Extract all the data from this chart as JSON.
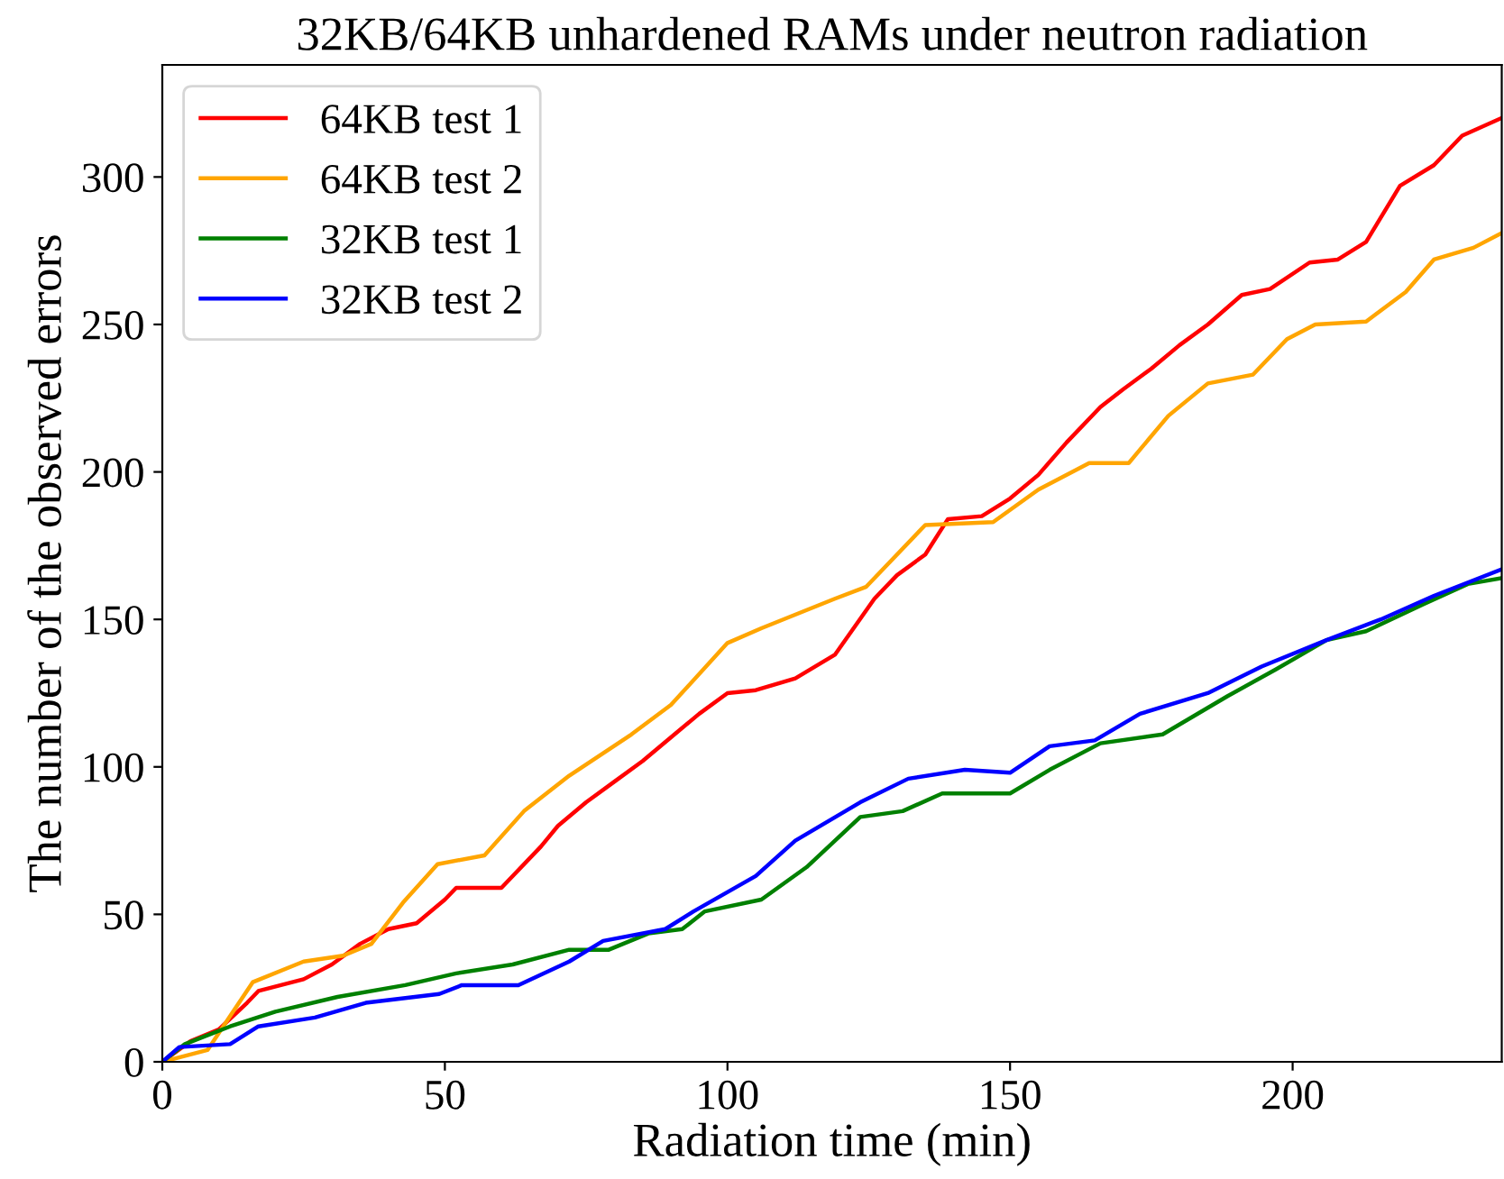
{
  "chart_data": {
    "type": "line",
    "title": "32KB/64KB unhardened RAMs under neutron radiation",
    "xlabel": "Radiation time (min)",
    "ylabel": "The number of the observed errors",
    "xlim": [
      0,
      237
    ],
    "ylim": [
      0,
      338
    ],
    "xticks": [
      0,
      50,
      100,
      150,
      200
    ],
    "yticks": [
      0,
      50,
      100,
      150,
      200,
      250,
      300
    ],
    "grid": false,
    "legend": "top left",
    "marker": "none",
    "line_style": "solid",
    "series": [
      {
        "name": "64KB test 1",
        "color": "#ff0000",
        "x": [
          0,
          5,
          10,
          15,
          17,
          25,
          30,
          35,
          40,
          45,
          50,
          52,
          60,
          67,
          70,
          75,
          80,
          85,
          90,
          95,
          100,
          105,
          112,
          119,
          126,
          130,
          135,
          139,
          145,
          150,
          155,
          160,
          166,
          170,
          175,
          180,
          185,
          191,
          196,
          203,
          208,
          213,
          219,
          225,
          230,
          237
        ],
        "values": [
          0,
          7,
          11,
          20,
          24,
          28,
          33,
          40,
          45,
          47,
          55,
          59,
          59,
          73,
          80,
          88,
          95,
          102,
          110,
          118,
          125,
          126,
          130,
          138,
          157,
          165,
          172,
          184,
          185,
          191,
          199,
          210,
          222,
          228,
          235,
          243,
          250,
          260,
          262,
          271,
          272,
          278,
          297,
          304,
          314,
          320
        ]
      },
      {
        "name": "64KB test 2",
        "color": "#ffa500",
        "x": [
          0,
          8,
          16,
          25,
          32,
          37,
          42.6,
          48.7,
          57,
          64,
          72,
          83,
          90,
          100,
          106,
          119,
          124.5,
          135,
          147,
          155,
          164,
          171,
          178,
          185,
          193,
          199,
          204,
          213,
          220,
          225,
          232,
          237
        ],
        "values": [
          0,
          4,
          27,
          34,
          36,
          40,
          54,
          67,
          70,
          85,
          97,
          111,
          121,
          142,
          147,
          157,
          161,
          182,
          183,
          194,
          203,
          203,
          219,
          230,
          233,
          245,
          250,
          251,
          261,
          272,
          276,
          281
        ]
      },
      {
        "name": "32KB test 1",
        "color": "#008000",
        "x": [
          0,
          4,
          12,
          20,
          31,
          43,
          52,
          62,
          72,
          79,
          86,
          92,
          96,
          106,
          114,
          123.5,
          131,
          138,
          150,
          157,
          166,
          177,
          188.5,
          197,
          206,
          213,
          223,
          231,
          237
        ],
        "values": [
          0,
          6,
          12,
          17,
          22,
          26,
          30,
          33,
          38,
          38,
          43.5,
          45,
          51,
          55,
          66,
          83,
          85,
          91,
          91,
          99,
          108,
          111,
          124,
          133,
          143,
          146,
          155,
          162,
          164
        ]
      },
      {
        "name": "32KB test 2",
        "color": "#0000ff",
        "x": [
          0,
          3,
          12,
          17,
          27,
          36,
          49,
          53,
          63,
          72,
          78,
          89,
          94,
          105,
          112,
          123.5,
          132,
          142,
          150,
          157,
          165,
          173,
          185,
          194.5,
          206,
          215.6,
          225,
          237
        ],
        "values": [
          0,
          5,
          6,
          12,
          15,
          20,
          23,
          26,
          26,
          34,
          41,
          45,
          51,
          63,
          75,
          88,
          96,
          99,
          98,
          107,
          109,
          118,
          125,
          134,
          143,
          150,
          158,
          167
        ]
      }
    ]
  }
}
